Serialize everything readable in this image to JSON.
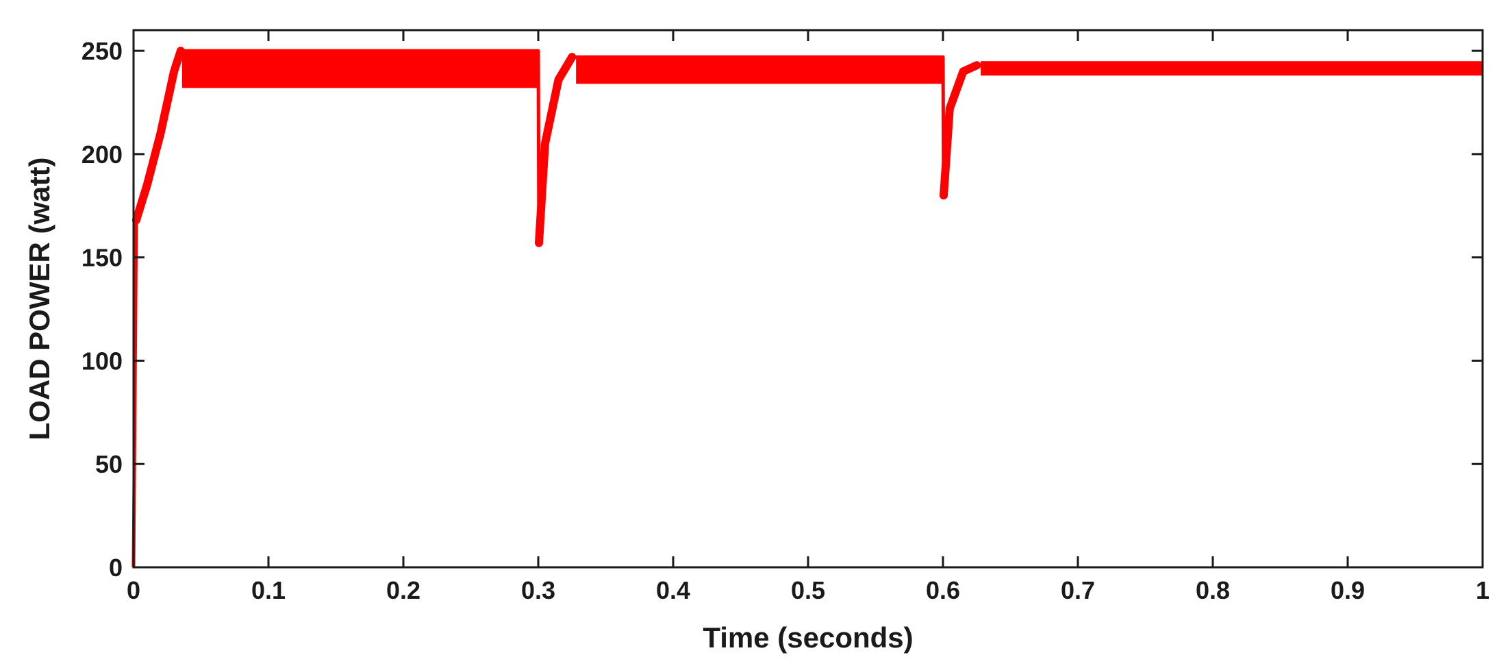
{
  "chart_data": {
    "type": "line",
    "title": "",
    "xlabel": "Time (seconds)",
    "ylabel": "LOAD POWER (watt)",
    "xlim": [
      0,
      1
    ],
    "ylim": [
      0,
      260
    ],
    "xticks": [
      0,
      0.1,
      0.2,
      0.3,
      0.4,
      0.5,
      0.6,
      0.7,
      0.8,
      0.9,
      1
    ],
    "xtick_labels": [
      "0",
      "0.1",
      "0.2",
      "0.3",
      "0.4",
      "0.5",
      "0.6",
      "0.7",
      "0.8",
      "0.9",
      "1"
    ],
    "yticks": [
      0,
      50,
      100,
      150,
      200,
      250
    ],
    "ytick_labels": [
      "0",
      "50",
      "100",
      "150",
      "200",
      "250"
    ],
    "grid": false,
    "series": [
      {
        "color": "#ff0000",
        "render": "ripple-band",
        "centerline": [
          [
            0,
            0
          ],
          [
            0.002,
            168
          ],
          [
            0.01,
            185
          ],
          [
            0.02,
            210
          ],
          [
            0.03,
            240
          ],
          [
            0.035,
            250
          ],
          [
            0.3,
            250
          ],
          [
            0.3005,
            157
          ],
          [
            0.305,
            205
          ],
          [
            0.315,
            236
          ],
          [
            0.325,
            247
          ],
          [
            0.6,
            247
          ],
          [
            0.6005,
            180
          ],
          [
            0.605,
            222
          ],
          [
            0.615,
            240
          ],
          [
            0.625,
            243
          ],
          [
            1,
            243
          ]
        ],
        "envelope": [
          {
            "x": [
              0.036,
              0.2995
            ],
            "high": 250,
            "low": 232
          },
          {
            "x": [
              0.328,
              0.5995
            ],
            "high": 247,
            "low": 234
          },
          {
            "x": [
              0.628,
              1.0
            ],
            "high": 245,
            "low": 238
          }
        ]
      }
    ]
  }
}
